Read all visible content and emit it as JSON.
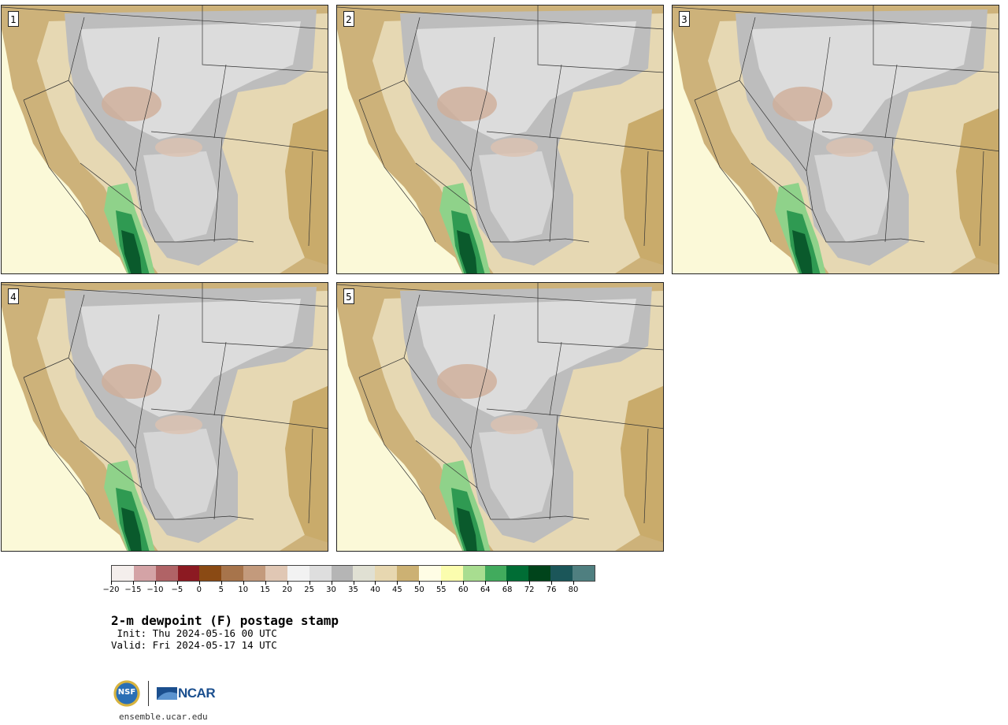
{
  "panels": [
    {
      "label": "1"
    },
    {
      "label": "2"
    },
    {
      "label": "3"
    },
    {
      "label": "4"
    },
    {
      "label": "5"
    }
  ],
  "colorbar": {
    "colors": [
      "#f4eeec",
      "#d4a3a6",
      "#b06366",
      "#8c1a22",
      "#8a4a14",
      "#a7744b",
      "#c39a7c",
      "#e0c7b4",
      "#f2f2f2",
      "#dedede",
      "#b5b5b5",
      "#e0e0d3",
      "#e7d7b0",
      "#ccb173",
      "#fffde5",
      "#fbfdae",
      "#a8dd90",
      "#41ab5d",
      "#006d35",
      "#00441b",
      "#1b5659",
      "#4f7f80"
    ],
    "tick_labels": [
      "−20",
      "−15",
      "−10",
      "−5",
      "0",
      "5",
      "10",
      "15",
      "20",
      "25",
      "30",
      "35",
      "40",
      "45",
      "50",
      "55",
      "60",
      "64",
      "68",
      "72",
      "76",
      "80"
    ]
  },
  "title": "2-m dewpoint (F) postage stamp",
  "init": " Init: Thu 2024-05-16 00 UTC",
  "valid": "Valid: Fri 2024-05-17 14 UTC",
  "logo": {
    "nsf_text": "NSF",
    "ncar_text": "NCAR"
  },
  "site": "ensemble.ucar.edu"
}
